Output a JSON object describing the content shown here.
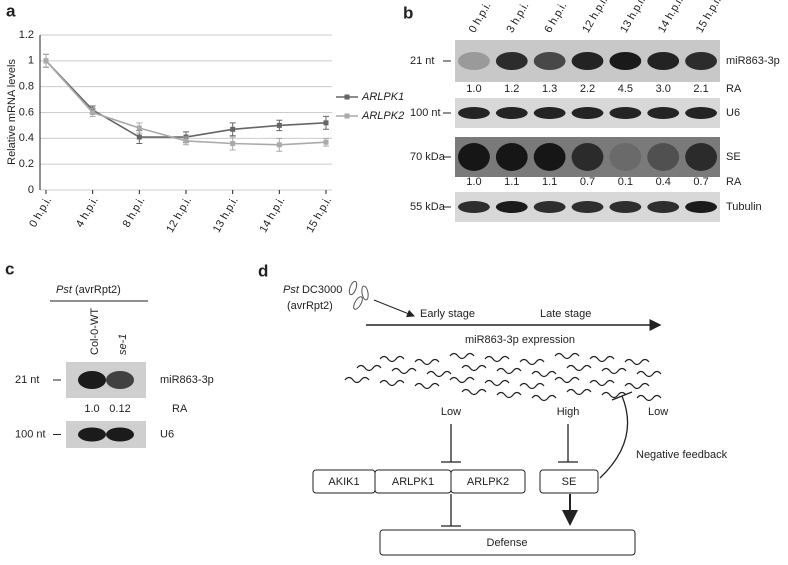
{
  "chart_data": {
    "type": "line",
    "panel": "a",
    "ylabel": "Relative mRNA levels",
    "categories": [
      "0 h.p.i.",
      "4 h.p.i.",
      "8 h.p.i.",
      "12 h.p.i.",
      "13 h.p.i.",
      "14 h.p.i.",
      "15 h.p.i."
    ],
    "series": [
      {
        "name": "ARLPK1",
        "color": "#666666",
        "values": [
          1.0,
          0.62,
          0.41,
          0.41,
          0.47,
          0.5,
          0.52
        ],
        "errors": [
          0.05,
          0.03,
          0.05,
          0.04,
          0.05,
          0.04,
          0.05
        ]
      },
      {
        "name": "ARLPK2",
        "color": "#aaaaaa",
        "values": [
          1.0,
          0.6,
          0.48,
          0.38,
          0.36,
          0.35,
          0.37
        ],
        "errors": [
          0.05,
          0.03,
          0.04,
          0.03,
          0.05,
          0.05,
          0.03
        ]
      }
    ],
    "ylim": [
      0,
      1.2
    ],
    "yticks": [
      0,
      0.2,
      0.4,
      0.6,
      0.8,
      1,
      1.2
    ],
    "grid": true,
    "legend": "right"
  },
  "panel_b": {
    "label": "b",
    "lanes": [
      "0 h.p.i.",
      "3 h.p.i.",
      "6 h.p.i.",
      "12 h.p.i.",
      "13 h.p.i.",
      "14 h.p.i.",
      "15 h.p.i."
    ],
    "blots": [
      {
        "size": "21 nt",
        "target": "miR863-3p"
      },
      {
        "size": "100 nt",
        "target": "U6"
      },
      {
        "size": "70 kDa",
        "target": "SE"
      },
      {
        "size": "55 kDa",
        "target": "Tubulin"
      }
    ],
    "ra_label": "RA",
    "ra_mirna": [
      "1.0",
      "1.2",
      "1.3",
      "2.2",
      "4.5",
      "3.0",
      "2.1"
    ],
    "ra_se": [
      "1.0",
      "1.1",
      "1.1",
      "0.7",
      "0.1",
      "0.4",
      "0.7"
    ]
  },
  "panel_c": {
    "label": "c",
    "organism": "Pst",
    "effector": "(avrRpt2)",
    "lanes": [
      "Col-0-WT",
      "se-1"
    ],
    "blots": [
      {
        "size": "21 nt",
        "target": "miR863-3p"
      },
      {
        "size": "100 nt",
        "target": "U6"
      }
    ],
    "ra_label": "RA",
    "ra": [
      "1.0",
      "0.12"
    ]
  },
  "panel_d": {
    "label": "d",
    "organism": "Pst",
    "strain": "DC3000",
    "effector": "(avrRpt2)",
    "early": "Early stage",
    "late": "Late stage",
    "expression": "miR863-3p expression",
    "low_left": "Low",
    "high": "High",
    "low_right": "Low",
    "feedback": "Negative feedback",
    "genes": [
      "AKIK1",
      "ARLPK1",
      "ARLPK2"
    ],
    "se": "SE",
    "defense": "Defense"
  }
}
